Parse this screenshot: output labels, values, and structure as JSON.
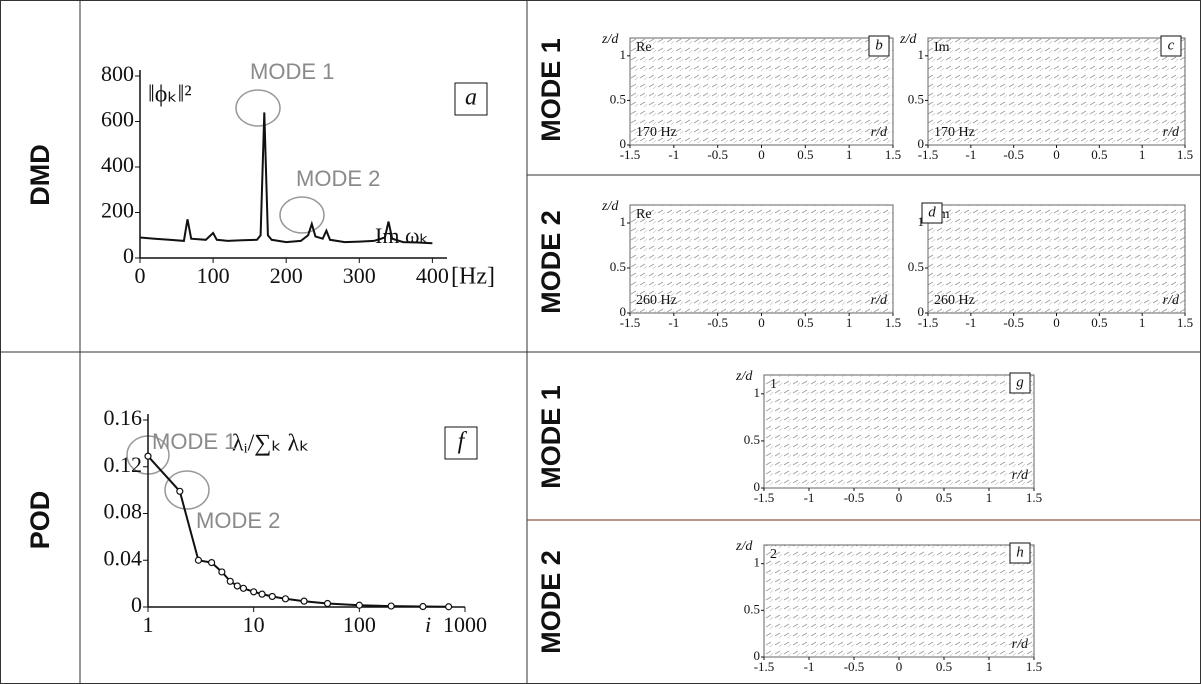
{
  "sections": [
    {
      "label": "DMD",
      "modes": [
        "MODE 1",
        "MODE 2"
      ]
    },
    {
      "label": "POD",
      "modes": [
        "MODE 1",
        "MODE 2"
      ]
    }
  ],
  "chart_data": [
    {
      "type": "line",
      "panel": "a",
      "y_label": "‖ϕₖ‖²",
      "x_label": "[Hz]",
      "series_label": "Im ωₖ",
      "annotations": [
        "MODE 1",
        "MODE 2"
      ],
      "color": "#111111",
      "x": [
        0,
        20,
        40,
        60,
        65,
        70,
        90,
        100,
        105,
        120,
        140,
        160,
        165,
        170,
        175,
        180,
        200,
        220,
        230,
        235,
        240,
        250,
        255,
        260,
        280,
        300,
        320,
        335,
        340,
        345,
        360,
        380,
        400
      ],
      "values": [
        90,
        85,
        80,
        75,
        170,
        85,
        80,
        110,
        80,
        75,
        78,
        80,
        100,
        640,
        100,
        80,
        70,
        75,
        100,
        150,
        95,
        85,
        120,
        80,
        70,
        72,
        75,
        90,
        160,
        85,
        70,
        68,
        65
      ],
      "xlim": [
        0,
        420
      ],
      "ylim": [
        0,
        800
      ],
      "xticks": [
        0,
        100,
        200,
        300,
        400
      ],
      "yticks": [
        0,
        200,
        400,
        600,
        800
      ]
    },
    {
      "type": "line",
      "log_x": true,
      "markers": true,
      "panel": "f",
      "y_label": "λᵢ/∑ₖ λₖ",
      "x_label": "i",
      "annotations": [
        "MODE 1",
        "MODE 2"
      ],
      "color": "#111111",
      "x": [
        1,
        2,
        3,
        4,
        5,
        6,
        7,
        8,
        10,
        12,
        15,
        20,
        30,
        50,
        100,
        200,
        400,
        700
      ],
      "values": [
        0.129,
        0.099,
        0.04,
        0.038,
        0.03,
        0.022,
        0.018,
        0.016,
        0.013,
        0.011,
        0.009,
        0.007,
        0.005,
        0.003,
        0.0015,
        0.0008,
        0.0004,
        0.0002
      ],
      "xlim": [
        1,
        1000
      ],
      "ylim": [
        0,
        0.16
      ],
      "xticks": [
        1,
        10,
        100,
        1000
      ],
      "yticks": [
        0,
        0.04,
        0.08,
        0.12,
        0.16
      ]
    },
    {
      "type": "quiver",
      "panel": "b",
      "component": "Re",
      "frequency": "170 Hz",
      "x_label": "r/d",
      "y_label": "z/d",
      "xlim": [
        -1.5,
        1.5
      ],
      "ylim": [
        0,
        1.2
      ],
      "xticks": [
        -1.5,
        -1,
        -0.5,
        0,
        0.5,
        1,
        1.5
      ],
      "yticks": [
        0,
        0.5,
        1
      ]
    },
    {
      "type": "quiver",
      "panel": "c",
      "component": "Im",
      "frequency": "170 Hz",
      "x_label": "r/d",
      "y_label": "z/d",
      "xlim": [
        -1.5,
        1.5
      ],
      "ylim": [
        0,
        1.2
      ],
      "xticks": [
        -1.5,
        -1,
        -0.5,
        0,
        0.5,
        1,
        1.5
      ],
      "yticks": [
        0,
        0.5,
        1
      ]
    },
    {
      "type": "quiver",
      "component": "Re",
      "frequency": "260 Hz",
      "x_label": "r/d",
      "y_label": "z/d",
      "xlim": [
        -1.5,
        1.5
      ],
      "ylim": [
        0,
        1.2
      ],
      "xticks": [
        -1.5,
        -1,
        -0.5,
        0,
        0.5,
        1,
        1.5
      ],
      "yticks": [
        0,
        0.5,
        1
      ]
    },
    {
      "type": "quiver",
      "panel": "d",
      "component": "Im",
      "frequency": "260 Hz",
      "x_label": "r/d",
      "xlim": [
        -1.5,
        1.5
      ],
      "ylim": [
        0,
        1.2
      ],
      "xticks": [
        -1.5,
        -1,
        -0.5,
        0,
        0.5,
        1,
        1.5
      ],
      "yticks": [
        0,
        0.5,
        1
      ]
    },
    {
      "type": "quiver",
      "panel": "g",
      "component": "1",
      "x_label": "r/d",
      "y_label": "z/d",
      "xlim": [
        -1.5,
        1.5
      ],
      "ylim": [
        0,
        1.2
      ],
      "xticks": [
        -1.5,
        -1,
        -0.5,
        0,
        0.5,
        1,
        1.5
      ],
      "yticks": [
        0,
        0.5,
        1
      ]
    },
    {
      "type": "quiver",
      "panel": "h",
      "component": "2",
      "x_label": "r/d",
      "y_label": "z/d",
      "xlim": [
        -1.5,
        1.5
      ],
      "ylim": [
        0,
        1.2
      ],
      "xticks": [
        -1.5,
        -1,
        -0.5,
        0,
        0.5,
        1,
        1.5
      ],
      "yticks": [
        0,
        0.5,
        1
      ]
    }
  ]
}
